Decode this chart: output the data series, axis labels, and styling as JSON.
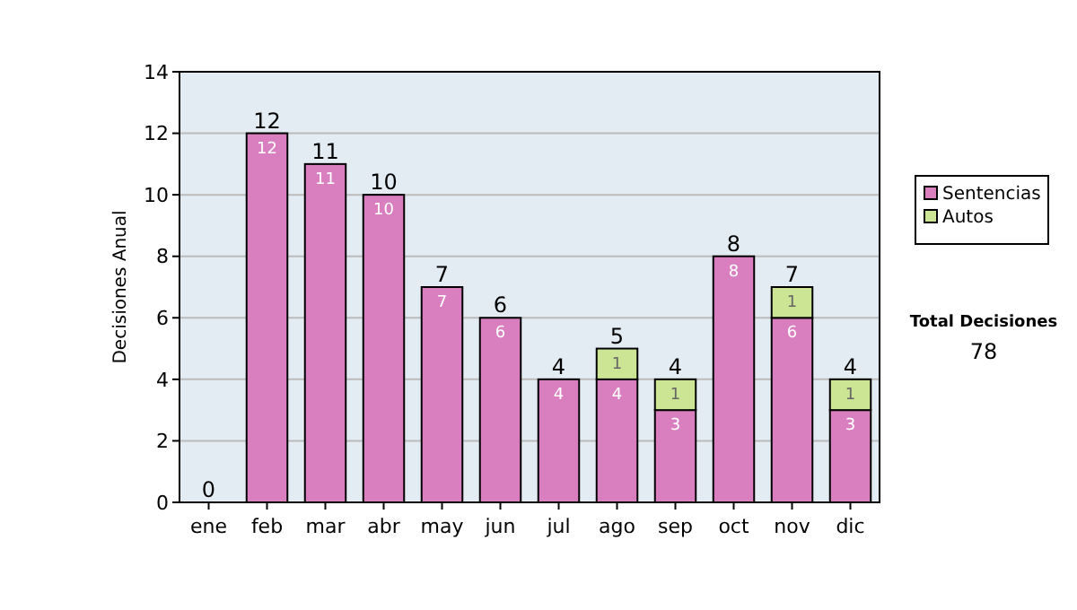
{
  "chart_data": {
    "type": "bar",
    "stacked": true,
    "categories": [
      "ene",
      "feb",
      "mar",
      "abr",
      "may",
      "jun",
      "jul",
      "ago",
      "sep",
      "oct",
      "nov",
      "dic"
    ],
    "series": [
      {
        "name": "Sentencias",
        "color": "#d97fc0",
        "values": [
          0,
          12,
          11,
          10,
          7,
          6,
          4,
          4,
          3,
          8,
          6,
          3
        ],
        "value_labels": [
          null,
          "12",
          "11",
          "10",
          "7",
          "6",
          "4",
          "4",
          "3",
          "8",
          "6",
          "3"
        ]
      },
      {
        "name": "Autos",
        "color": "#cce594",
        "values": [
          0,
          0,
          0,
          0,
          0,
          0,
          0,
          1,
          1,
          0,
          1,
          1
        ],
        "value_labels": [
          null,
          null,
          null,
          null,
          null,
          null,
          null,
          "1",
          "1",
          null,
          "1",
          "1"
        ]
      }
    ],
    "totals": [
      "0",
      "12",
      "11",
      "10",
      "7",
      "6",
      "4",
      "5",
      "4",
      "8",
      "7",
      "4"
    ],
    "ylabel": "Decisiones Anual",
    "ylim": [
      0,
      14
    ],
    "yticks": [
      0,
      2,
      4,
      6,
      8,
      10,
      12,
      14
    ],
    "grid": "y",
    "legend": "right",
    "annotations": [
      "Total Decisiones",
      "78"
    ]
  }
}
